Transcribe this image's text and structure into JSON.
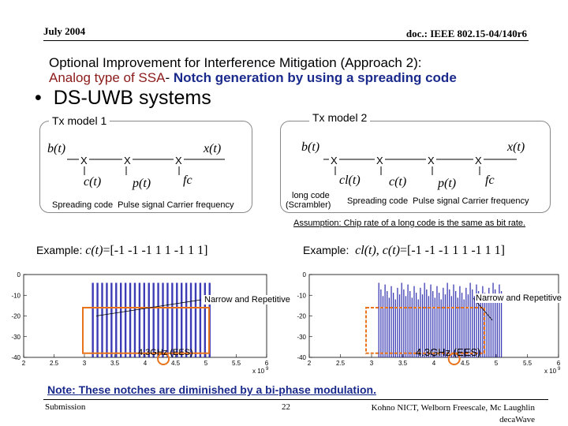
{
  "header": {
    "date": "July 2004",
    "doc": "doc.: IEEE 802.15-04/140r6"
  },
  "title": {
    "line1": "Optional Improvement for Interference Mitigation (Approach 2):",
    "line2_red": "Analog type of SSA",
    "line2_sep": "-",
    "line2_blue": " Notch generation by using a spreading code"
  },
  "bullet": {
    "symbol": "•",
    "text": "DS-UWB systems"
  },
  "model1": {
    "label": "Tx model 1",
    "input": "b(t)",
    "output": "x(t)",
    "mult": "X",
    "signals": [
      "c(t)",
      "p(t)",
      "fc"
    ],
    "caption": "Spreading code  Pulse signal Carrier frequency"
  },
  "model2": {
    "label": "Tx model 2",
    "input": "b(t)",
    "output": "x(t)",
    "mult": "X",
    "signals": [
      "cl(t)",
      "c(t)",
      "p(t)",
      "fc"
    ],
    "long_code": "long code",
    "scrambler": "(Scrambler)",
    "caption": "Spreading code  Pulse signal Carrier frequency"
  },
  "assumption": "Assumption: Chip rate of a long code is the same as bit rate.",
  "example1": {
    "prefix": "Example: ",
    "sig": "c(t)",
    "rest": "=[-1 -1 -1 1 1 -1 1 1]"
  },
  "example2": {
    "prefix": "Example:  ",
    "sig1": "cl(t)",
    "sep": ", ",
    "sig2": "c(t)",
    "rest": "=[-1 -1 -1 1 1 -1 1 1]"
  },
  "plots": {
    "yticks": [
      "0",
      "-10",
      "-20",
      "-30",
      "-40"
    ],
    "xticks": [
      "2",
      "2.5",
      "3",
      "3.5",
      "4",
      "4.5",
      "5",
      "5.5",
      "6"
    ],
    "xscale": "x 10",
    "xscale_exp": "9",
    "left_annotation": "Narrow and Repetitive",
    "right_annotation": "Narrow and Repetitive",
    "left_freq": "4.3GHz (EES)",
    "right_freq": "4.3GHz (EES)"
  },
  "note": "Note: These notches are diminished by a bi-phase modulation.",
  "footer": {
    "left": "Submission",
    "page": "22",
    "right1": "Kohno NICT, Welborn Freescale, Mc Laughlin",
    "right2": "decaWave"
  },
  "colors": {
    "title_red": "#8B1A1A",
    "title_blue": "#1a2a8c",
    "highlight": "#E8731A",
    "spectrum": "#1a1aa8"
  }
}
